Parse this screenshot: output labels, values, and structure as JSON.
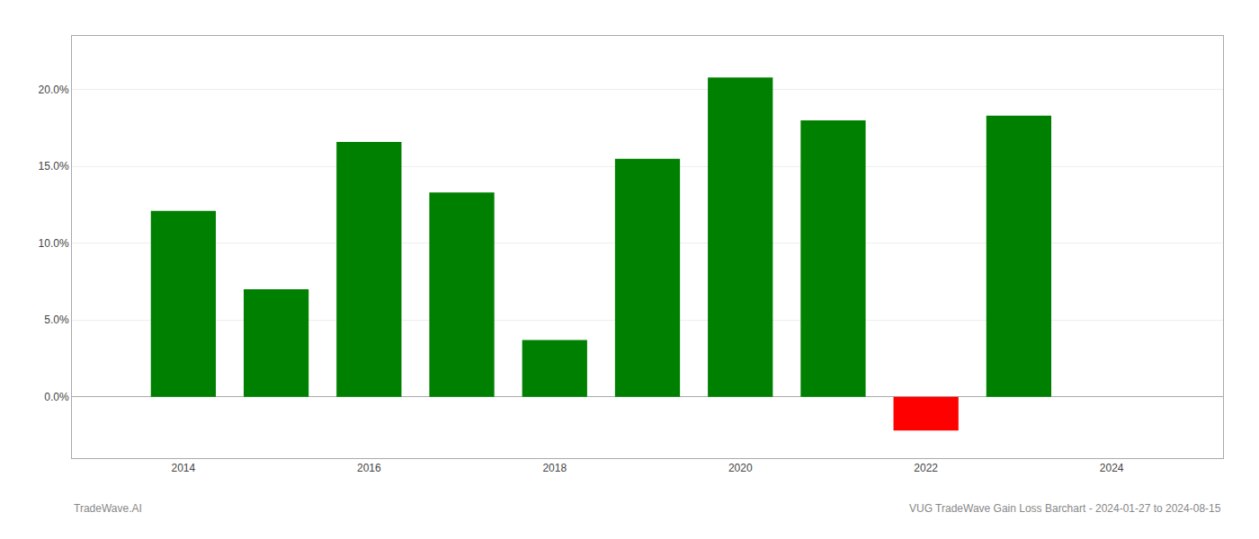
{
  "chart_data": {
    "type": "bar",
    "x": [
      2014,
      2015,
      2016,
      2017,
      2018,
      2019,
      2020,
      2021,
      2022,
      2023
    ],
    "values": [
      0.121,
      0.07,
      0.166,
      0.133,
      0.037,
      0.155,
      0.208,
      0.18,
      -0.022,
      0.183
    ],
    "colors": [
      "#008000",
      "#008000",
      "#008000",
      "#008000",
      "#008000",
      "#008000",
      "#008000",
      "#008000",
      "#ff0000",
      "#008000"
    ],
    "xlim": [
      2012.8,
      2025.2
    ],
    "xticks": [
      2014,
      2016,
      2018,
      2020,
      2022,
      2024
    ],
    "ylim": [
      -0.04,
      0.235
    ],
    "yticks": [
      {
        "value": 0.0,
        "label": "0.0%"
      },
      {
        "value": 0.05,
        "label": "5.0%"
      },
      {
        "value": 0.1,
        "label": "10.0%"
      },
      {
        "value": 0.15,
        "label": "15.0%"
      },
      {
        "value": 0.2,
        "label": "20.0%"
      }
    ],
    "grid": "y",
    "annotations": [
      "TradeWave.AI",
      "VUG TradeWave Gain Loss Barchart - 2024-01-27 to 2024-08-15"
    ]
  }
}
